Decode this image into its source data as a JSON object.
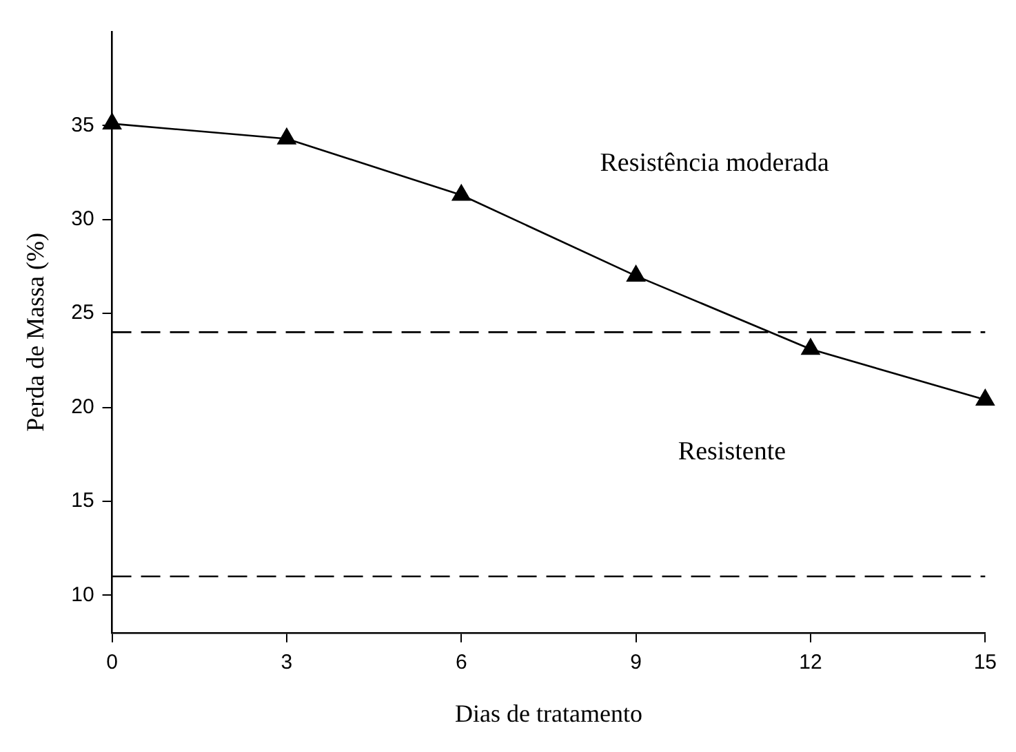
{
  "chart_data": {
    "type": "line",
    "xlabel": "Dias de tratamento",
    "ylabel": "Perda de Massa (%)",
    "x": [
      0,
      3,
      6,
      9,
      12,
      15
    ],
    "series": [
      {
        "color": "#000000",
        "values": [
          35.1,
          34.3,
          31.3,
          27.0,
          23.1,
          20.4
        ]
      }
    ],
    "xlim": [
      0,
      15
    ],
    "xticks": [
      0,
      3,
      6,
      9,
      12,
      15
    ],
    "ylim": [
      8,
      40
    ],
    "yticks": [
      10,
      15,
      20,
      25,
      30,
      35
    ],
    "ref_lines": [
      {
        "axis": "y",
        "value": 24,
        "color": "#000000",
        "line_style": "dashed"
      },
      {
        "axis": "y",
        "value": 11,
        "color": "#000000",
        "line_style": "dashed"
      }
    ],
    "annotations": [
      "Resistência moderada",
      "Resistente"
    ],
    "grid": false,
    "legend": false,
    "marker": "triangle",
    "line_style": "solid"
  }
}
